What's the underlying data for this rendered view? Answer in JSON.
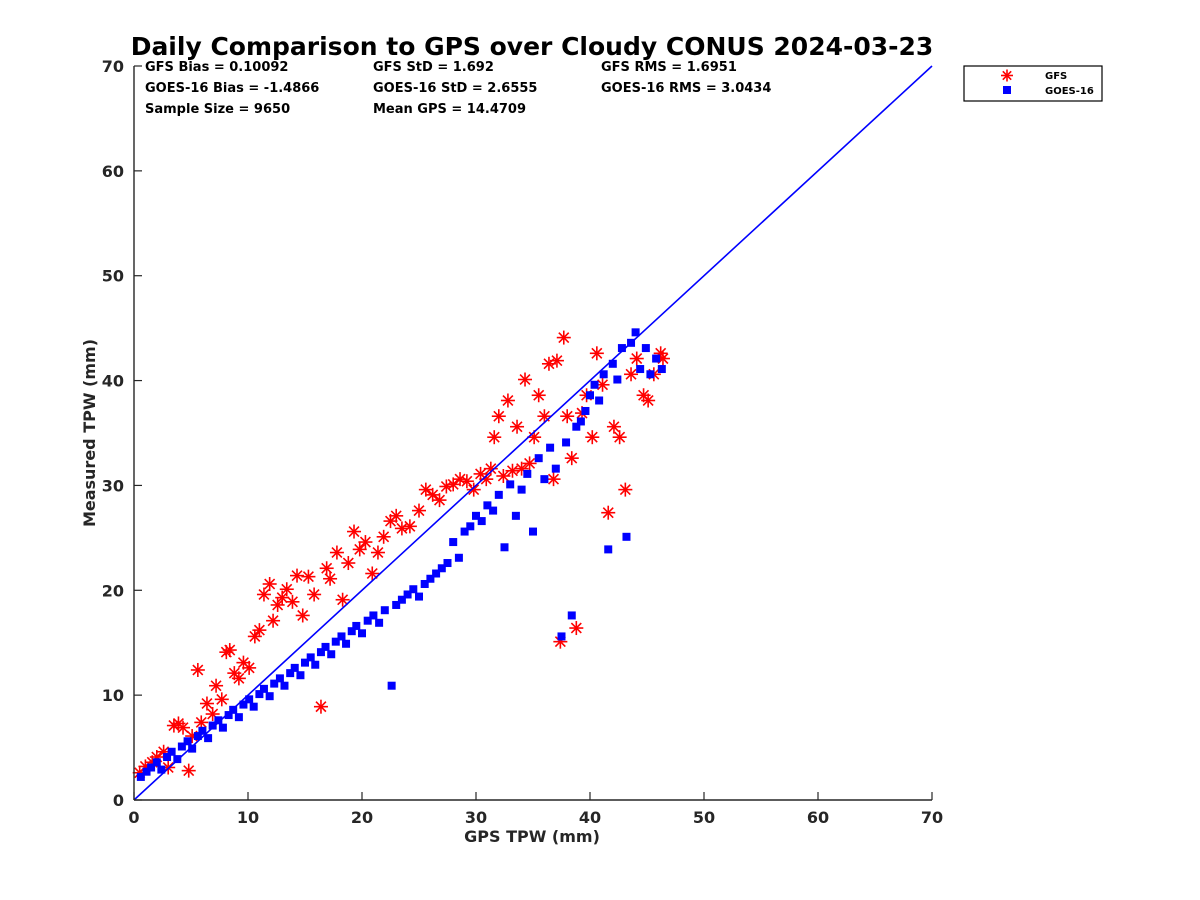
{
  "chart_data": {
    "type": "scatter",
    "title": "Daily Comparison to GPS over Cloudy CONUS 2024-03-23",
    "xlabel": "GPS TPW (mm)",
    "ylabel": "Measured TPW (mm)",
    "xlim": [
      0,
      70
    ],
    "ylim": [
      0,
      70
    ],
    "xticks": [
      "0",
      "10",
      "20",
      "30",
      "40",
      "50",
      "60",
      "70"
    ],
    "yticks": [
      "0",
      "10",
      "20",
      "30",
      "40",
      "50",
      "60",
      "70"
    ],
    "grid": false,
    "legend_position": "outside-top-right",
    "reference_line": {
      "from": [
        0,
        0
      ],
      "to": [
        70,
        70
      ],
      "color": "#0000ff"
    },
    "stats": [
      "GFS Bias = 0.10092",
      "GFS StD = 1.692",
      "GFS RMS = 1.6951",
      "GOES-16 Bias = -1.4866",
      "GOES-16 StD = 2.6555",
      "GOES-16 RMS = 3.0434",
      "Sample Size = 9650",
      "Mean GPS = 14.4709"
    ],
    "series": [
      {
        "name": "GFS",
        "marker": "asterisk",
        "color": "#ff0000",
        "points": [
          [
            0.5,
            2.6
          ],
          [
            1.0,
            3.2
          ],
          [
            1.6,
            3.6
          ],
          [
            2.0,
            4.1
          ],
          [
            2.6,
            4.6
          ],
          [
            3.0,
            3.1
          ],
          [
            3.5,
            7.1
          ],
          [
            3.9,
            7.3
          ],
          [
            4.3,
            6.9
          ],
          [
            4.8,
            2.8
          ],
          [
            5.1,
            6.1
          ],
          [
            5.6,
            12.4
          ],
          [
            5.9,
            7.4
          ],
          [
            6.4,
            9.2
          ],
          [
            6.9,
            8.2
          ],
          [
            7.2,
            10.9
          ],
          [
            7.7,
            9.6
          ],
          [
            8.1,
            14.1
          ],
          [
            8.4,
            14.3
          ],
          [
            8.8,
            12.1
          ],
          [
            9.2,
            11.6
          ],
          [
            9.6,
            13.1
          ],
          [
            10.1,
            12.6
          ],
          [
            10.6,
            15.6
          ],
          [
            11.0,
            16.2
          ],
          [
            11.4,
            19.6
          ],
          [
            11.9,
            20.6
          ],
          [
            12.2,
            17.1
          ],
          [
            12.6,
            18.6
          ],
          [
            13.0,
            19.3
          ],
          [
            13.4,
            20.1
          ],
          [
            13.9,
            18.9
          ],
          [
            14.3,
            21.4
          ],
          [
            14.8,
            17.6
          ],
          [
            15.3,
            21.3
          ],
          [
            15.8,
            19.6
          ],
          [
            16.4,
            8.9
          ],
          [
            16.9,
            22.1
          ],
          [
            17.2,
            21.1
          ],
          [
            17.8,
            23.6
          ],
          [
            18.3,
            19.1
          ],
          [
            18.8,
            22.6
          ],
          [
            19.3,
            25.6
          ],
          [
            19.8,
            23.9
          ],
          [
            20.3,
            24.6
          ],
          [
            20.9,
            21.6
          ],
          [
            21.4,
            23.6
          ],
          [
            21.9,
            25.1
          ],
          [
            22.5,
            26.6
          ],
          [
            23.0,
            27.1
          ],
          [
            23.5,
            25.9
          ],
          [
            24.2,
            26.1
          ],
          [
            25.0,
            27.6
          ],
          [
            25.6,
            29.6
          ],
          [
            26.2,
            29.1
          ],
          [
            26.8,
            28.6
          ],
          [
            27.4,
            29.9
          ],
          [
            28.0,
            30.1
          ],
          [
            28.6,
            30.6
          ],
          [
            29.2,
            30.4
          ],
          [
            29.8,
            29.6
          ],
          [
            30.4,
            31.1
          ],
          [
            30.9,
            30.6
          ],
          [
            31.3,
            31.6
          ],
          [
            31.6,
            34.6
          ],
          [
            32.0,
            36.6
          ],
          [
            32.4,
            30.9
          ],
          [
            32.8,
            38.1
          ],
          [
            33.2,
            31.4
          ],
          [
            33.6,
            35.6
          ],
          [
            34.0,
            31.6
          ],
          [
            34.3,
            40.1
          ],
          [
            34.7,
            32.1
          ],
          [
            35.1,
            34.6
          ],
          [
            35.5,
            38.6
          ],
          [
            36.0,
            36.6
          ],
          [
            36.4,
            41.6
          ],
          [
            36.8,
            30.6
          ],
          [
            37.1,
            41.9
          ],
          [
            37.4,
            15.1
          ],
          [
            37.7,
            44.1
          ],
          [
            38.0,
            36.6
          ],
          [
            38.4,
            32.6
          ],
          [
            38.8,
            16.4
          ],
          [
            39.3,
            36.9
          ],
          [
            39.7,
            38.6
          ],
          [
            40.2,
            34.6
          ],
          [
            40.6,
            42.6
          ],
          [
            41.1,
            39.6
          ],
          [
            41.6,
            27.4
          ],
          [
            42.1,
            35.6
          ],
          [
            42.6,
            34.6
          ],
          [
            43.1,
            29.6
          ],
          [
            43.6,
            40.6
          ],
          [
            44.1,
            42.1
          ],
          [
            44.7,
            38.6
          ],
          [
            45.1,
            38.1
          ],
          [
            45.6,
            40.6
          ],
          [
            46.2,
            42.6
          ],
          [
            46.4,
            42.1
          ]
        ]
      },
      {
        "name": "GOES-16",
        "marker": "square",
        "color": "#0000ff",
        "points": [
          [
            0.6,
            2.2
          ],
          [
            1.1,
            2.7
          ],
          [
            1.5,
            3.1
          ],
          [
            2.0,
            3.6
          ],
          [
            2.4,
            2.9
          ],
          [
            2.9,
            4.1
          ],
          [
            3.3,
            4.6
          ],
          [
            3.8,
            3.9
          ],
          [
            4.2,
            5.1
          ],
          [
            4.7,
            5.6
          ],
          [
            5.1,
            4.9
          ],
          [
            5.6,
            6.1
          ],
          [
            6.0,
            6.6
          ],
          [
            6.5,
            5.9
          ],
          [
            6.9,
            7.1
          ],
          [
            7.4,
            7.6
          ],
          [
            7.8,
            6.9
          ],
          [
            8.3,
            8.1
          ],
          [
            8.7,
            8.6
          ],
          [
            9.2,
            7.9
          ],
          [
            9.6,
            9.1
          ],
          [
            10.1,
            9.6
          ],
          [
            10.5,
            8.9
          ],
          [
            11.0,
            10.1
          ],
          [
            11.4,
            10.6
          ],
          [
            11.9,
            9.9
          ],
          [
            12.3,
            11.1
          ],
          [
            12.8,
            11.6
          ],
          [
            13.2,
            10.9
          ],
          [
            13.7,
            12.1
          ],
          [
            14.1,
            12.6
          ],
          [
            14.6,
            11.9
          ],
          [
            15.0,
            13.1
          ],
          [
            15.5,
            13.6
          ],
          [
            15.9,
            12.9
          ],
          [
            16.4,
            14.1
          ],
          [
            16.8,
            14.6
          ],
          [
            17.3,
            13.9
          ],
          [
            17.7,
            15.1
          ],
          [
            18.2,
            15.6
          ],
          [
            18.6,
            14.9
          ],
          [
            19.1,
            16.1
          ],
          [
            19.5,
            16.6
          ],
          [
            20.0,
            15.9
          ],
          [
            20.5,
            17.1
          ],
          [
            21.0,
            17.6
          ],
          [
            21.5,
            16.9
          ],
          [
            22.0,
            18.1
          ],
          [
            22.6,
            10.9
          ],
          [
            23.0,
            18.6
          ],
          [
            23.5,
            19.1
          ],
          [
            24.0,
            19.6
          ],
          [
            24.5,
            20.1
          ],
          [
            25.0,
            19.4
          ],
          [
            25.5,
            20.6
          ],
          [
            26.0,
            21.1
          ],
          [
            26.5,
            21.6
          ],
          [
            27.0,
            22.1
          ],
          [
            27.5,
            22.6
          ],
          [
            28.0,
            24.6
          ],
          [
            28.5,
            23.1
          ],
          [
            29.0,
            25.6
          ],
          [
            29.5,
            26.1
          ],
          [
            30.0,
            27.1
          ],
          [
            30.5,
            26.6
          ],
          [
            31.0,
            28.1
          ],
          [
            31.5,
            27.6
          ],
          [
            32.0,
            29.1
          ],
          [
            32.5,
            24.1
          ],
          [
            33.0,
            30.1
          ],
          [
            33.5,
            27.1
          ],
          [
            34.0,
            29.6
          ],
          [
            34.5,
            31.1
          ],
          [
            35.0,
            25.6
          ],
          [
            35.5,
            32.6
          ],
          [
            36.0,
            30.6
          ],
          [
            36.5,
            33.6
          ],
          [
            37.0,
            31.6
          ],
          [
            37.5,
            15.6
          ],
          [
            37.9,
            34.1
          ],
          [
            38.4,
            17.6
          ],
          [
            38.8,
            35.6
          ],
          [
            39.2,
            36.1
          ],
          [
            39.6,
            37.1
          ],
          [
            40.0,
            38.6
          ],
          [
            40.4,
            39.6
          ],
          [
            40.8,
            38.1
          ],
          [
            41.2,
            40.6
          ],
          [
            41.6,
            23.9
          ],
          [
            42.0,
            41.6
          ],
          [
            42.4,
            40.1
          ],
          [
            42.8,
            43.1
          ],
          [
            43.2,
            25.1
          ],
          [
            43.6,
            43.6
          ],
          [
            44.0,
            44.6
          ],
          [
            44.4,
            41.1
          ],
          [
            44.9,
            43.1
          ],
          [
            45.3,
            40.6
          ],
          [
            45.8,
            42.1
          ],
          [
            46.3,
            41.1
          ]
        ]
      }
    ]
  }
}
